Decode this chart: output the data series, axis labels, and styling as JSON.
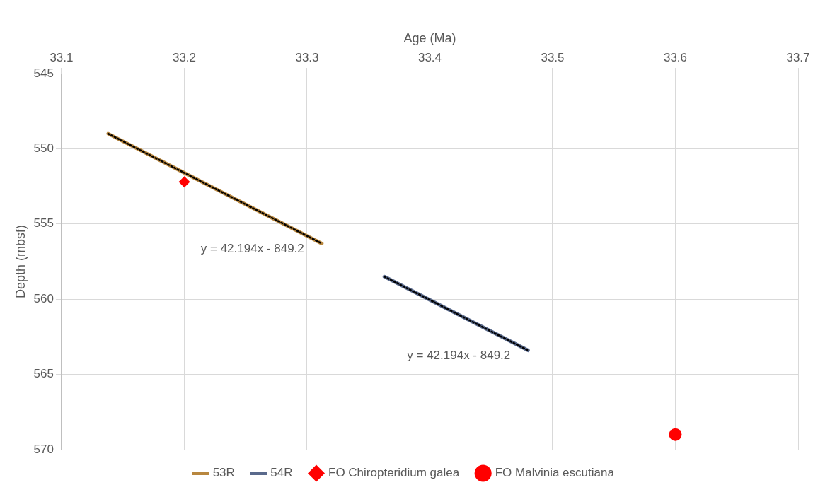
{
  "chart_data": {
    "type": "line",
    "xlabel": "Age (Ma)",
    "ylabel": "Depth (mbsf)",
    "xlim": [
      33.1,
      33.7
    ],
    "xticks": [
      33.1,
      33.2,
      33.3,
      33.4,
      33.5,
      33.6,
      33.7
    ],
    "ylim": [
      570,
      545
    ],
    "yticks": [
      545,
      550,
      555,
      560,
      565,
      570
    ],
    "grid": true,
    "legend": "bottom",
    "series": [
      {
        "name": "53R",
        "color": "#b8873f",
        "marker": "none",
        "x": [
          33.138,
          33.312
        ],
        "values": [
          549.0,
          556.3
        ]
      },
      {
        "name": "54R",
        "color": "#5a6a8c",
        "marker": "none",
        "x": [
          33.363,
          33.48
        ],
        "values": [
          558.5,
          563.4
        ]
      },
      {
        "color": "#000000",
        "line_style": "dotted",
        "marker": "none",
        "x": [
          33.138,
          33.312
        ],
        "values": [
          549.0,
          556.3
        ]
      },
      {
        "color": "#000000",
        "line_style": "dotted",
        "marker": "none",
        "x": [
          33.363,
          33.48
        ],
        "values": [
          558.5,
          563.4
        ]
      },
      {
        "name": "FO Chiropteridium galea",
        "type": "scatter",
        "color": "#ff0000",
        "marker": "diamond",
        "x": [
          33.2
        ],
        "values": [
          552.2
        ]
      },
      {
        "name": "FO Malvinia escutiana",
        "type": "scatter",
        "color": "#ff0000",
        "marker": "circle",
        "x": [
          33.6
        ],
        "values": [
          569.0
        ]
      }
    ],
    "annotations": [
      "y = 42.194x - 849.2",
      "y = 42.194x - 849.2"
    ]
  }
}
